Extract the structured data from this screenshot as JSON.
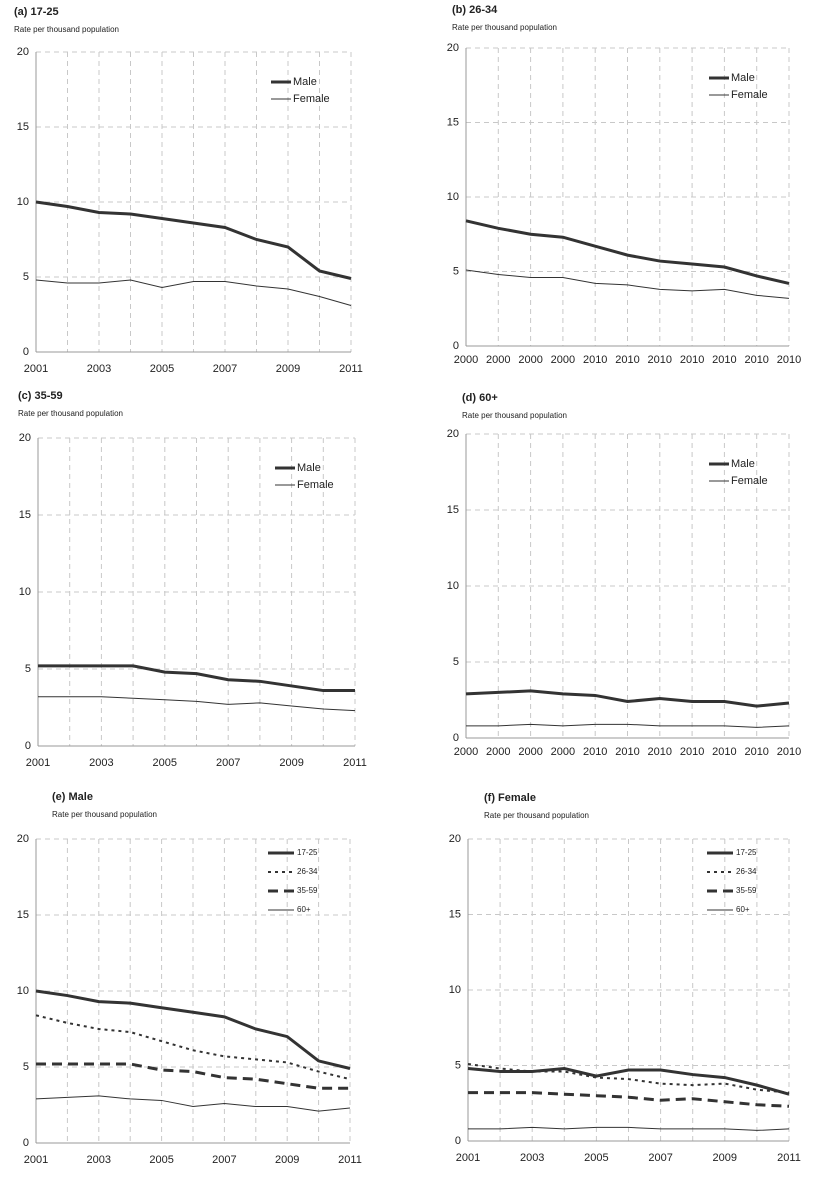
{
  "chart_data": [
    {
      "type": "line",
      "title": "(a) 17-25",
      "subtitle": "Rate per thousand population",
      "x": [
        2001,
        2002,
        2003,
        2004,
        2005,
        2006,
        2007,
        2008,
        2009,
        2010,
        2011
      ],
      "xlim": [
        2001,
        2011
      ],
      "xticks": [
        2001,
        2003,
        2005,
        2007,
        2009,
        2011
      ],
      "ylim": [
        0,
        20
      ],
      "yticks": [
        0,
        5,
        10,
        15,
        20
      ],
      "grid": true,
      "legend": "upper right",
      "series": [
        {
          "name": "Male",
          "color": "#333333",
          "line_style": "thick",
          "values": [
            10.0,
            9.7,
            9.3,
            9.2,
            8.9,
            8.6,
            8.3,
            7.5,
            7.0,
            5.4,
            4.9
          ]
        },
        {
          "name": "Female",
          "color": "#333333",
          "line_style": "thin",
          "values": [
            4.8,
            4.6,
            4.6,
            4.8,
            4.3,
            4.7,
            4.7,
            4.4,
            4.2,
            3.7,
            3.1
          ]
        }
      ]
    },
    {
      "type": "line",
      "title": "(b) 26-34",
      "subtitle": "Rate per thousand population",
      "categories": [
        "2000",
        "2000",
        "2000",
        "2000",
        "2010",
        "2010",
        "2010",
        "2010",
        "2010",
        "2010",
        "2010"
      ],
      "ylim": [
        0,
        20
      ],
      "yticks": [
        0,
        5,
        10,
        15,
        20
      ],
      "grid": true,
      "legend": "upper right",
      "series": [
        {
          "name": "Male",
          "color": "#333333",
          "line_style": "thick",
          "values": [
            8.4,
            7.9,
            7.5,
            7.3,
            6.7,
            6.1,
            5.7,
            5.5,
            5.3,
            4.7,
            4.2
          ]
        },
        {
          "name": "Female",
          "color": "#333333",
          "line_style": "thin",
          "values": [
            5.1,
            4.8,
            4.6,
            4.6,
            4.2,
            4.1,
            3.8,
            3.7,
            3.8,
            3.4,
            3.2
          ]
        }
      ]
    },
    {
      "type": "line",
      "title": "(c) 35-59",
      "subtitle": "Rate per thousand population",
      "x": [
        2001,
        2002,
        2003,
        2004,
        2005,
        2006,
        2007,
        2008,
        2009,
        2010,
        2011
      ],
      "xlim": [
        2001,
        2011
      ],
      "xticks": [
        2001,
        2003,
        2005,
        2007,
        2009,
        2011
      ],
      "ylim": [
        0,
        20
      ],
      "yticks": [
        0,
        5,
        10,
        15,
        20
      ],
      "grid": true,
      "legend": "upper right",
      "series": [
        {
          "name": "Male",
          "color": "#333333",
          "line_style": "thick",
          "values": [
            5.2,
            5.2,
            5.2,
            5.2,
            4.8,
            4.7,
            4.3,
            4.2,
            3.9,
            3.6,
            3.6
          ]
        },
        {
          "name": "Female",
          "color": "#333333",
          "line_style": "thin",
          "values": [
            3.2,
            3.2,
            3.2,
            3.1,
            3.0,
            2.9,
            2.7,
            2.8,
            2.6,
            2.4,
            2.3
          ]
        }
      ]
    },
    {
      "type": "line",
      "title": "(d) 60+",
      "subtitle": "Rate per thousand population",
      "categories": [
        "2000",
        "2000",
        "2000",
        "2000",
        "2010",
        "2010",
        "2010",
        "2010",
        "2010",
        "2010",
        "2010"
      ],
      "ylim": [
        0,
        20
      ],
      "yticks": [
        0,
        5,
        10,
        15,
        20
      ],
      "grid": true,
      "legend": "upper right",
      "series": [
        {
          "name": "Male",
          "color": "#333333",
          "line_style": "thick",
          "values": [
            2.9,
            3.0,
            3.1,
            2.9,
            2.8,
            2.4,
            2.6,
            2.4,
            2.4,
            2.1,
            2.3
          ]
        },
        {
          "name": "Female",
          "color": "#333333",
          "line_style": "thin",
          "values": [
            0.8,
            0.8,
            0.9,
            0.8,
            0.9,
            0.9,
            0.8,
            0.8,
            0.8,
            0.7,
            0.8
          ]
        }
      ]
    },
    {
      "type": "line",
      "title": "(e) Male",
      "subtitle": "Rate per thousand population",
      "x": [
        2001,
        2002,
        2003,
        2004,
        2005,
        2006,
        2007,
        2008,
        2009,
        2010,
        2011
      ],
      "xlim": [
        2001,
        2011
      ],
      "xticks": [
        2001,
        2003,
        2005,
        2007,
        2009,
        2011
      ],
      "ylim": [
        0,
        20
      ],
      "yticks": [
        0,
        5,
        10,
        15,
        20
      ],
      "grid": true,
      "legend": "upper right",
      "series": [
        {
          "name": "17-25",
          "color": "#333333",
          "line_style": "thick",
          "values": [
            10.0,
            9.7,
            9.3,
            9.2,
            8.9,
            8.6,
            8.3,
            7.5,
            7.0,
            5.4,
            4.9
          ]
        },
        {
          "name": "26-34",
          "color": "#333333",
          "line_style": "dotted",
          "values": [
            8.4,
            7.9,
            7.5,
            7.3,
            6.7,
            6.1,
            5.7,
            5.5,
            5.3,
            4.7,
            4.2
          ]
        },
        {
          "name": "35-59",
          "color": "#333333",
          "line_style": "dashed",
          "values": [
            5.2,
            5.2,
            5.2,
            5.2,
            4.8,
            4.7,
            4.3,
            4.2,
            3.9,
            3.6,
            3.6
          ]
        },
        {
          "name": "60+",
          "color": "#333333",
          "line_style": "thin",
          "values": [
            2.9,
            3.0,
            3.1,
            2.9,
            2.8,
            2.4,
            2.6,
            2.4,
            2.4,
            2.1,
            2.3
          ]
        }
      ]
    },
    {
      "type": "line",
      "title": "(f) Female",
      "subtitle": "Rate per thousand population",
      "x": [
        2001,
        2002,
        2003,
        2004,
        2005,
        2006,
        2007,
        2008,
        2009,
        2010,
        2011
      ],
      "xlim": [
        2001,
        2011
      ],
      "xticks": [
        2001,
        2003,
        2005,
        2007,
        2009,
        2011
      ],
      "ylim": [
        0,
        20
      ],
      "yticks": [
        0,
        5,
        10,
        15,
        20
      ],
      "grid": true,
      "legend": "upper right",
      "series": [
        {
          "name": "17-25",
          "color": "#333333",
          "line_style": "thick",
          "values": [
            4.8,
            4.6,
            4.6,
            4.8,
            4.3,
            4.7,
            4.7,
            4.4,
            4.2,
            3.7,
            3.1
          ]
        },
        {
          "name": "26-34",
          "color": "#333333",
          "line_style": "dotted",
          "values": [
            5.1,
            4.8,
            4.6,
            4.6,
            4.2,
            4.1,
            3.8,
            3.7,
            3.8,
            3.4,
            3.2
          ]
        },
        {
          "name": "35-59",
          "color": "#333333",
          "line_style": "dashed",
          "values": [
            3.2,
            3.2,
            3.2,
            3.1,
            3.0,
            2.9,
            2.7,
            2.8,
            2.6,
            2.4,
            2.3
          ]
        },
        {
          "name": "60+",
          "color": "#333333",
          "line_style": "thin",
          "values": [
            0.8,
            0.8,
            0.9,
            0.8,
            0.9,
            0.9,
            0.8,
            0.8,
            0.8,
            0.7,
            0.8
          ]
        }
      ]
    }
  ]
}
